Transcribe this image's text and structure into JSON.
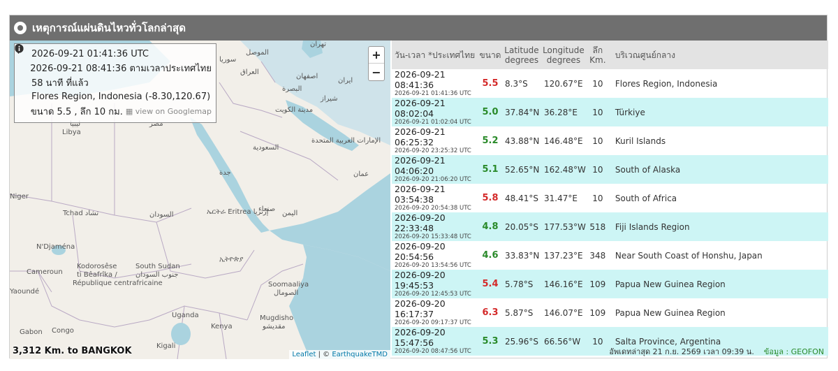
{
  "header": {
    "title": "เหตุการณ์แผ่นดินไหวทั่วโลกล่าสุด"
  },
  "colors": {
    "header_bg": "#6f6f6f",
    "row_alt": "#cdf5f5",
    "mag_red": "#d42a2a",
    "mag_green": "#2a8a2a"
  },
  "map": {
    "info": {
      "utc": "2026-09-21 01:41:36 UTC",
      "local": "2026-09-21 08:41:36 ตามเวลาประเทศไทย",
      "ago": "58 นาที ที่แล้ว",
      "location": "Flores Region, Indonesia (-8.30,120.67)",
      "size": "ขนาด 5.5 , ลึก 10 กม.",
      "googlemap": "view on Googlemap"
    },
    "zoom_in": "+",
    "zoom_out": "−",
    "distance": "3,312 Km. to BANGKOK",
    "attribution_leaflet": "Leaflet",
    "attribution_sep": " | © ",
    "attribution_tmd": "EarthquakeTMD",
    "place_labels": [
      "الموصل",
      "تهران",
      "سوريا",
      "العراق",
      "اصفهان",
      "ایران",
      "البصرة",
      "شيراز",
      "مدينة الكويت",
      "Libya",
      "السعودية",
      "الإمارات العربية المتحدة",
      "عمان",
      "Niger",
      "Tchad تشاد",
      "السودان",
      "ኤርትራ Eritrea إرتريا",
      "صنعاء",
      "اليمن",
      "N'Djaména",
      "Kodorosêse",
      "ti Bêafrîka /",
      "République centrafricaine",
      "South Sudan",
      "جنوب السودان",
      "ኢትዮጵያ",
      "Soomaaliya",
      "الصومال",
      "Cameroun",
      "Yaoundé",
      "Uganda",
      "Kenya",
      "Mugdisho",
      "مقديشو",
      "Gabon",
      "Congo",
      "Kigali",
      "جدة",
      "مصر",
      "ليبيا"
    ]
  },
  "table": {
    "headers": {
      "datetime": "วัน-เวลา *ประเทศไทย",
      "mag": "ขนาด",
      "lat": "Latitude degrees",
      "lon": "Longitude degrees",
      "depth": "ลึก Km.",
      "region": "บริเวณศูนย์กลาง"
    },
    "rows": [
      {
        "local": "2026-09-21 08:41:36",
        "utc": "2026-09-21 01:41:36 UTC",
        "mag": "5.5",
        "mag_color": "#d42a2a",
        "lat": "8.3°S",
        "lon": "120.67°E",
        "depth": "10",
        "region": "Flores Region, Indonesia"
      },
      {
        "local": "2026-09-21 08:02:04",
        "utc": "2026-09-21 01:02:04 UTC",
        "mag": "5.0",
        "mag_color": "#2a8a2a",
        "lat": "37.84°N",
        "lon": "36.28°E",
        "depth": "10",
        "region": "Türkiye"
      },
      {
        "local": "2026-09-21 06:25:32",
        "utc": "2026-09-20 23:25:32 UTC",
        "mag": "5.2",
        "mag_color": "#2a8a2a",
        "lat": "43.88°N",
        "lon": "146.48°E",
        "depth": "10",
        "region": "Kuril Islands"
      },
      {
        "local": "2026-09-21 04:06:20",
        "utc": "2026-09-20 21:06:20 UTC",
        "mag": "5.1",
        "mag_color": "#2a8a2a",
        "lat": "52.65°N",
        "lon": "162.48°W",
        "depth": "10",
        "region": "South of Alaska"
      },
      {
        "local": "2026-09-21 03:54:38",
        "utc": "2026-09-20 20:54:38 UTC",
        "mag": "5.8",
        "mag_color": "#d42a2a",
        "lat": "48.41°S",
        "lon": "31.47°E",
        "depth": "10",
        "region": "South of Africa"
      },
      {
        "local": "2026-09-20 22:33:48",
        "utc": "2026-09-20 15:33:48 UTC",
        "mag": "4.8",
        "mag_color": "#2a8a2a",
        "lat": "20.05°S",
        "lon": "177.53°W",
        "depth": "518",
        "region": "Fiji Islands Region"
      },
      {
        "local": "2026-09-20 20:54:56",
        "utc": "2026-09-20 13:54:56 UTC",
        "mag": "4.6",
        "mag_color": "#2a8a2a",
        "lat": "33.83°N",
        "lon": "137.23°E",
        "depth": "348",
        "region": "Near South Coast of Honshu, Japan"
      },
      {
        "local": "2026-09-20 19:45:53",
        "utc": "2026-09-20 12:45:53 UTC",
        "mag": "5.4",
        "mag_color": "#d42a2a",
        "lat": "5.78°S",
        "lon": "146.16°E",
        "depth": "109",
        "region": "Papua New Guinea Region"
      },
      {
        "local": "2026-09-20 16:17:37",
        "utc": "2026-09-20 09:17:37 UTC",
        "mag": "6.3",
        "mag_color": "#d42a2a",
        "lat": "5.87°S",
        "lon": "146.07°E",
        "depth": "109",
        "region": "Papua New Guinea Region"
      },
      {
        "local": "2026-09-20 15:47:56",
        "utc": "2026-09-20 08:47:56 UTC",
        "mag": "5.3",
        "mag_color": "#2a8a2a",
        "lat": "25.96°S",
        "lon": "66.56°W",
        "depth": "10",
        "region": "Salta Province, Argentina"
      }
    ]
  },
  "footer": {
    "updated": "อัพเดทล่าสุด 21 ก.ย. 2569 เวลา 09:39 น.",
    "source": "ข้อมูล : GEOFON"
  }
}
